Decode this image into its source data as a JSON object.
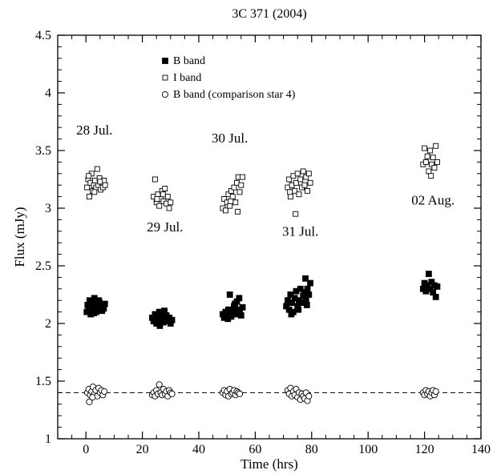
{
  "chart_data": {
    "type": "scatter",
    "title": "3C 371 (2004)",
    "xlabel": "Time (hrs)",
    "ylabel": "Flux (mJy)",
    "xlim": [
      -10,
      140
    ],
    "ylim": [
      1,
      4.5
    ],
    "x_ticks": [
      0,
      20,
      40,
      60,
      80,
      100,
      120,
      140
    ],
    "y_ticks": [
      1,
      1.5,
      2,
      2.5,
      3,
      3.5,
      4,
      4.5
    ],
    "x_tick_labels": [
      "0",
      "20",
      "40",
      "60",
      "80",
      "100",
      "120",
      "140"
    ],
    "y_tick_labels": [
      "1",
      "1.5",
      "2",
      "2.5",
      "3",
      "3.5",
      "4",
      "4.5"
    ],
    "grid": false,
    "legend_placement": "top-left",
    "reference_line": {
      "y": 1.4,
      "style": "dashed"
    },
    "annotations": [
      {
        "text": "28 Jul.",
        "x": 3,
        "y": 3.64
      },
      {
        "text": "29 Jul.",
        "x": 28,
        "y": 2.8
      },
      {
        "text": "30 Jul.",
        "x": 51,
        "y": 3.57
      },
      {
        "text": "31 Jul.",
        "x": 76,
        "y": 2.76
      },
      {
        "text": "02 Aug.",
        "x": 123,
        "y": 3.03
      }
    ],
    "series": [
      {
        "name": "B band",
        "marker": "filled-square",
        "points": [
          [
            0.3,
            2.1
          ],
          [
            0.6,
            2.16
          ],
          [
            1.0,
            2.12
          ],
          [
            1.3,
            2.2
          ],
          [
            1.7,
            2.08
          ],
          [
            2.0,
            2.14
          ],
          [
            2.3,
            2.18
          ],
          [
            2.6,
            2.11
          ],
          [
            3.0,
            2.22
          ],
          [
            3.3,
            2.15
          ],
          [
            3.7,
            2.1
          ],
          [
            4.0,
            2.17
          ],
          [
            4.3,
            2.13
          ],
          [
            4.7,
            2.19
          ],
          [
            5.0,
            2.12
          ],
          [
            5.3,
            2.16
          ],
          [
            5.7,
            2.11
          ],
          [
            6.0,
            2.15
          ],
          [
            6.3,
            2.13
          ],
          [
            6.7,
            2.17
          ],
          [
            1.2,
            2.14
          ],
          [
            2.8,
            2.09
          ],
          [
            4.5,
            2.2
          ],
          [
            5.5,
            2.14
          ],
          [
            23.5,
            2.05
          ],
          [
            24.0,
            2.02
          ],
          [
            24.5,
            2.08
          ],
          [
            25.0,
            2.0
          ],
          [
            25.5,
            2.04
          ],
          [
            26.0,
            2.1
          ],
          [
            26.5,
            2.03
          ],
          [
            27.0,
            2.06
          ],
          [
            27.5,
            2.01
          ],
          [
            28.0,
            2.04
          ],
          [
            28.5,
            2.07
          ],
          [
            29.0,
            2.02
          ],
          [
            29.5,
            2.05
          ],
          [
            30.0,
            2.0
          ],
          [
            30.5,
            2.03
          ],
          [
            26.2,
            1.98
          ],
          [
            27.8,
            2.11
          ],
          [
            25.3,
            2.06
          ],
          [
            48.5,
            2.08
          ],
          [
            49.0,
            2.05
          ],
          [
            49.5,
            2.1
          ],
          [
            50.0,
            2.07
          ],
          [
            50.5,
            2.12
          ],
          [
            51.0,
            2.25
          ],
          [
            51.5,
            2.06
          ],
          [
            52.0,
            2.1
          ],
          [
            52.5,
            2.15
          ],
          [
            53.0,
            2.08
          ],
          [
            53.5,
            2.19
          ],
          [
            54.0,
            2.1
          ],
          [
            54.5,
            2.12
          ],
          [
            55.0,
            2.07
          ],
          [
            55.5,
            2.14
          ],
          [
            50.3,
            2.04
          ],
          [
            52.8,
            2.17
          ],
          [
            54.3,
            2.22
          ],
          [
            71.0,
            2.15
          ],
          [
            71.5,
            2.2
          ],
          [
            72.0,
            2.12
          ],
          [
            72.5,
            2.25
          ],
          [
            73.0,
            2.18
          ],
          [
            73.5,
            2.1
          ],
          [
            74.0,
            2.22
          ],
          [
            74.5,
            2.28
          ],
          [
            75.0,
            2.15
          ],
          [
            75.5,
            2.2
          ],
          [
            76.0,
            2.3
          ],
          [
            76.5,
            2.18
          ],
          [
            77.0,
            2.24
          ],
          [
            77.5,
            2.27
          ],
          [
            78.0,
            2.21
          ],
          [
            78.5,
            2.3
          ],
          [
            79.0,
            2.25
          ],
          [
            79.5,
            2.35
          ],
          [
            77.8,
            2.39
          ],
          [
            72.8,
            2.08
          ],
          [
            75.3,
            2.12
          ],
          [
            78.3,
            2.16
          ],
          [
            119.5,
            2.3
          ],
          [
            120.0,
            2.35
          ],
          [
            120.5,
            2.28
          ],
          [
            121.0,
            2.33
          ],
          [
            121.5,
            2.43
          ],
          [
            122.0,
            2.3
          ],
          [
            122.5,
            2.36
          ],
          [
            123.0,
            2.27
          ],
          [
            123.5,
            2.33
          ],
          [
            124.0,
            2.23
          ],
          [
            124.5,
            2.32
          ]
        ]
      },
      {
        "name": "I band",
        "marker": "open-square",
        "points": [
          [
            0.4,
            3.18
          ],
          [
            0.8,
            3.25
          ],
          [
            1.2,
            3.1
          ],
          [
            1.6,
            3.22
          ],
          [
            2.0,
            3.3
          ],
          [
            2.4,
            3.15
          ],
          [
            2.8,
            3.2
          ],
          [
            3.2,
            3.24
          ],
          [
            3.6,
            3.18
          ],
          [
            4.0,
            3.34
          ],
          [
            4.4,
            3.2
          ],
          [
            4.8,
            3.26
          ],
          [
            5.2,
            3.16
          ],
          [
            5.6,
            3.22
          ],
          [
            6.0,
            3.18
          ],
          [
            6.4,
            3.24
          ],
          [
            6.8,
            3.2
          ],
          [
            1.0,
            3.28
          ],
          [
            3.0,
            3.14
          ],
          [
            5.0,
            3.23
          ],
          [
            24.0,
            3.1
          ],
          [
            24.5,
            3.25
          ],
          [
            25.0,
            3.05
          ],
          [
            25.5,
            3.12
          ],
          [
            26.0,
            3.02
          ],
          [
            26.5,
            3.08
          ],
          [
            27.0,
            3.15
          ],
          [
            27.5,
            3.06
          ],
          [
            28.0,
            3.17
          ],
          [
            28.5,
            3.04
          ],
          [
            29.0,
            3.1
          ],
          [
            29.5,
            3.0
          ],
          [
            30.0,
            3.05
          ],
          [
            25.2,
            3.08
          ],
          [
            27.3,
            3.12
          ],
          [
            48.5,
            3.0
          ],
          [
            49.0,
            3.08
          ],
          [
            49.5,
            2.98
          ],
          [
            50.0,
            3.05
          ],
          [
            50.5,
            3.12
          ],
          [
            51.0,
            3.02
          ],
          [
            51.5,
            3.15
          ],
          [
            52.0,
            3.1
          ],
          [
            52.5,
            3.18
          ],
          [
            53.0,
            3.05
          ],
          [
            53.5,
            3.22
          ],
          [
            54.0,
            3.27
          ],
          [
            54.5,
            3.14
          ],
          [
            55.0,
            3.2
          ],
          [
            55.5,
            3.27
          ],
          [
            53.8,
            2.97
          ],
          [
            51.3,
            3.06
          ],
          [
            71.5,
            3.18
          ],
          [
            72.0,
            3.25
          ],
          [
            72.5,
            3.1
          ],
          [
            73.0,
            3.2
          ],
          [
            73.5,
            3.28
          ],
          [
            74.0,
            3.15
          ],
          [
            74.5,
            3.22
          ],
          [
            75.0,
            3.3
          ],
          [
            75.5,
            3.12
          ],
          [
            76.0,
            3.25
          ],
          [
            76.5,
            3.18
          ],
          [
            77.0,
            3.32
          ],
          [
            77.5,
            3.2
          ],
          [
            78.0,
            3.27
          ],
          [
            78.5,
            3.15
          ],
          [
            79.0,
            3.3
          ],
          [
            79.5,
            3.22
          ],
          [
            74.3,
            2.95
          ],
          [
            72.3,
            3.14
          ],
          [
            119.5,
            3.38
          ],
          [
            120.0,
            3.52
          ],
          [
            120.5,
            3.4
          ],
          [
            121.0,
            3.45
          ],
          [
            121.5,
            3.32
          ],
          [
            122.0,
            3.5
          ],
          [
            122.5,
            3.38
          ],
          [
            123.0,
            3.44
          ],
          [
            123.5,
            3.35
          ],
          [
            124.0,
            3.54
          ],
          [
            124.5,
            3.4
          ],
          [
            122.3,
            3.28
          ]
        ]
      },
      {
        "name": "B band (comparison star 4)",
        "marker": "open-circle",
        "points": [
          [
            0.5,
            1.4
          ],
          [
            1.0,
            1.43
          ],
          [
            1.5,
            1.38
          ],
          [
            2.0,
            1.41
          ],
          [
            2.5,
            1.45
          ],
          [
            3.0,
            1.39
          ],
          [
            3.5,
            1.42
          ],
          [
            4.0,
            1.37
          ],
          [
            4.5,
            1.44
          ],
          [
            5.0,
            1.4
          ],
          [
            5.5,
            1.42
          ],
          [
            6.0,
            1.38
          ],
          [
            6.5,
            1.41
          ],
          [
            1.2,
            1.32
          ],
          [
            2.3,
            1.36
          ],
          [
            23.5,
            1.38
          ],
          [
            24.0,
            1.4
          ],
          [
            24.5,
            1.37
          ],
          [
            25.0,
            1.42
          ],
          [
            25.5,
            1.39
          ],
          [
            26.0,
            1.47
          ],
          [
            26.5,
            1.4
          ],
          [
            27.0,
            1.38
          ],
          [
            27.5,
            1.43
          ],
          [
            28.0,
            1.39
          ],
          [
            28.5,
            1.41
          ],
          [
            29.0,
            1.37
          ],
          [
            29.5,
            1.42
          ],
          [
            30.0,
            1.4
          ],
          [
            30.5,
            1.39
          ],
          [
            48.5,
            1.4
          ],
          [
            49.0,
            1.42
          ],
          [
            49.5,
            1.38
          ],
          [
            50.0,
            1.41
          ],
          [
            50.5,
            1.37
          ],
          [
            51.0,
            1.43
          ],
          [
            51.5,
            1.39
          ],
          [
            52.0,
            1.4
          ],
          [
            52.5,
            1.42
          ],
          [
            53.0,
            1.38
          ],
          [
            53.5,
            1.41
          ],
          [
            54.0,
            1.4
          ],
          [
            54.5,
            1.39
          ],
          [
            71.5,
            1.42
          ],
          [
            72.0,
            1.39
          ],
          [
            72.5,
            1.44
          ],
          [
            73.0,
            1.37
          ],
          [
            73.5,
            1.41
          ],
          [
            74.0,
            1.38
          ],
          [
            74.5,
            1.43
          ],
          [
            75.0,
            1.36
          ],
          [
            75.5,
            1.4
          ],
          [
            76.0,
            1.34
          ],
          [
            76.5,
            1.39
          ],
          [
            77.0,
            1.37
          ],
          [
            77.5,
            1.35
          ],
          [
            78.0,
            1.4
          ],
          [
            78.5,
            1.33
          ],
          [
            79.0,
            1.37
          ],
          [
            119.5,
            1.4
          ],
          [
            120.0,
            1.38
          ],
          [
            120.5,
            1.42
          ],
          [
            121.0,
            1.39
          ],
          [
            121.5,
            1.41
          ],
          [
            122.0,
            1.37
          ],
          [
            122.5,
            1.4
          ],
          [
            123.0,
            1.42
          ],
          [
            123.5,
            1.38
          ],
          [
            124.0,
            1.41
          ]
        ]
      }
    ]
  }
}
